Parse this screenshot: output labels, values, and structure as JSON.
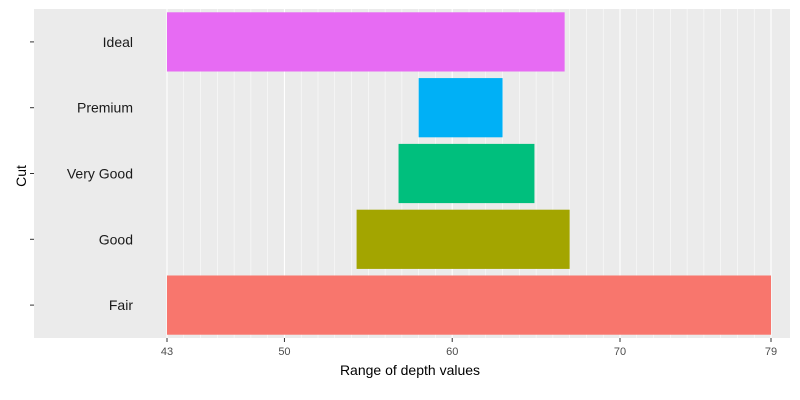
{
  "chart_data": {
    "type": "bar",
    "orientation": "horizontal",
    "xlabel": "Range of depth values",
    "ylabel": "Cut",
    "xlim": [
      43,
      79
    ],
    "x_ticks": [
      43,
      50,
      60,
      70,
      79
    ],
    "grid": true,
    "legend": "none",
    "bars": [
      {
        "category": "Fair",
        "start": 43,
        "end": 79,
        "color": "#F8766D"
      },
      {
        "category": "Good",
        "start": 54.3,
        "end": 67,
        "color": "#A3A500"
      },
      {
        "category": "Very Good",
        "start": 56.8,
        "end": 64.9,
        "color": "#00BF7D"
      },
      {
        "category": "Premium",
        "start": 58,
        "end": 63,
        "color": "#00B0F6"
      },
      {
        "category": "Ideal",
        "start": 43,
        "end": 66.7,
        "color": "#E76BF3"
      }
    ]
  }
}
